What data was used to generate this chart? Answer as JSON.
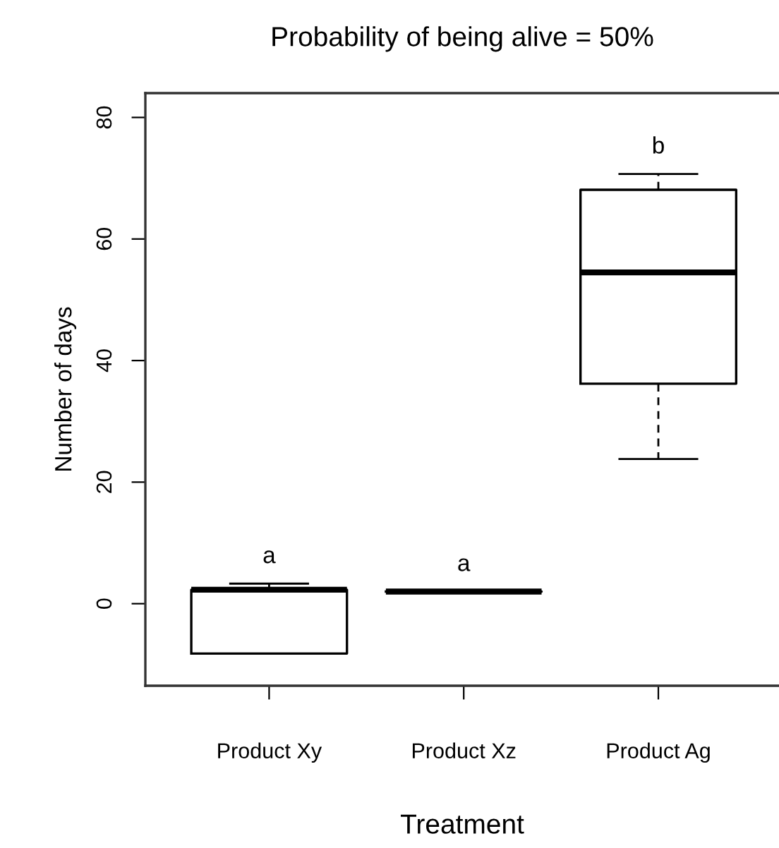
{
  "chart_data": {
    "type": "box",
    "title": "Probability of being alive = 50%",
    "xlabel": "Treatment",
    "ylabel": "Number of days",
    "categories": [
      "Product Xy",
      "Product Xz",
      "Product Ag"
    ],
    "boxes": [
      {
        "low": -8.2,
        "q1": -8.2,
        "median": 2.3,
        "q3": 2.3,
        "high": 3.3
      },
      {
        "low": 2.0,
        "q1": 2.0,
        "median": 2.0,
        "q3": 2.0,
        "high": 2.0
      },
      {
        "low": 23.8,
        "q1": 36.2,
        "median": 54.5,
        "q3": 68.1,
        "high": 70.7
      }
    ],
    "ylim": [
      -13.5,
      84
    ],
    "yticks": [
      0,
      20,
      40,
      60,
      80
    ],
    "grid": false,
    "annotations": [
      "a",
      "a",
      "b"
    ]
  }
}
